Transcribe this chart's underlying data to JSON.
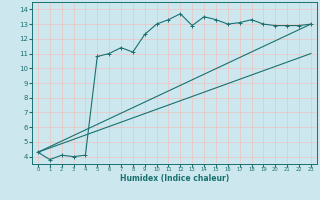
{
  "xlabel": "Humidex (Indice chaleur)",
  "xlim": [
    -0.5,
    23.5
  ],
  "ylim": [
    3.5,
    14.5
  ],
  "yticks": [
    4,
    5,
    6,
    7,
    8,
    9,
    10,
    11,
    12,
    13,
    14
  ],
  "xticks": [
    0,
    1,
    2,
    3,
    4,
    5,
    6,
    7,
    8,
    9,
    10,
    11,
    12,
    13,
    14,
    15,
    16,
    17,
    18,
    19,
    20,
    21,
    22,
    23
  ],
  "bg_color": "#cce8ee",
  "grid_color": "#e8c8c8",
  "line_color": "#1a7070",
  "line1_x": [
    0,
    1,
    2,
    3,
    4,
    5,
    6,
    7,
    8,
    9,
    10,
    11,
    12,
    13,
    14,
    15,
    16,
    17,
    18,
    19,
    20,
    21,
    22,
    23
  ],
  "line1_y": [
    4.3,
    3.8,
    4.1,
    4.0,
    4.1,
    10.8,
    11.0,
    11.4,
    11.1,
    12.3,
    13.0,
    13.3,
    13.7,
    12.9,
    13.5,
    13.3,
    13.0,
    13.1,
    13.3,
    13.0,
    12.9,
    12.9,
    12.9,
    13.0
  ],
  "line2_x": [
    0,
    23
  ],
  "line2_y": [
    4.3,
    13.0
  ],
  "line3_x": [
    0,
    23
  ],
  "line3_y": [
    4.3,
    11.0
  ],
  "marker": "+"
}
